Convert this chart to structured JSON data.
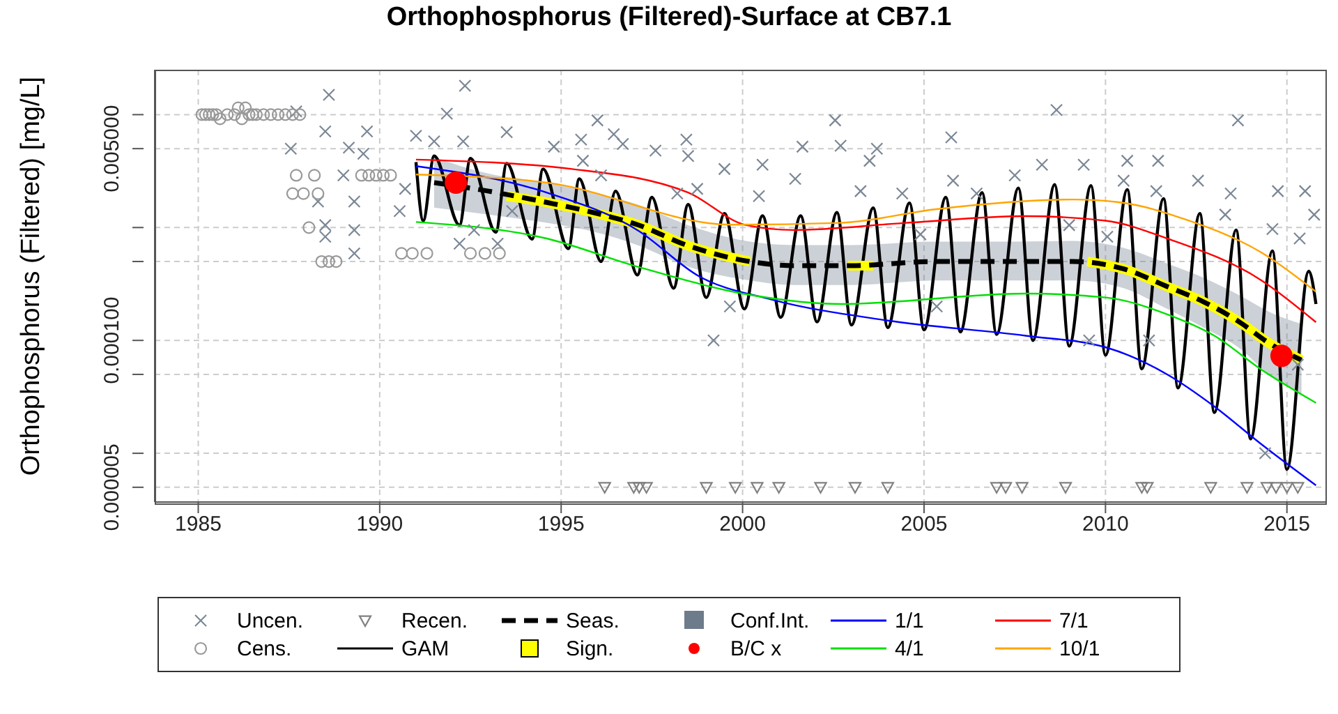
{
  "chart_data": {
    "type": "line",
    "title": "Orthophosphorus (Filtered)-Surface at CB7.1",
    "ylabel": "Orthophosphorus (Filtered) [mg/L]",
    "log": "y",
    "grid": true,
    "legend": "bottom",
    "xlim": [
      1983.8,
      2016.1
    ],
    "xticks": [
      1985,
      1990,
      1995,
      2000,
      2005,
      2010,
      2015
    ],
    "ylim": [
      3.7e-06,
      0.025
    ],
    "yticks": [
      {
        "value": 0.01,
        "label": null
      },
      {
        "value": 0.005,
        "label": "0.005000"
      },
      {
        "value": 0.001,
        "label": null
      },
      {
        "value": 0.0005,
        "label": null
      },
      {
        "value": 0.0001,
        "label": "0.000100"
      },
      {
        "value": 5e-05,
        "label": null
      },
      {
        "value": 1e-05,
        "label": null
      },
      {
        "value": 5e-06,
        "label": "0.000005"
      }
    ],
    "series": [
      {
        "name": "Uncen.",
        "type": "scatter",
        "marker": "cross",
        "color": "#7b8796",
        "x": [
          1987.55,
          1987.7,
          1988.3,
          1988.5,
          1988.5,
          1988.5,
          1988.6,
          1989.0,
          1989.15,
          1989.3,
          1989.3,
          1989.3,
          1989.55,
          1989.65,
          1990.55,
          1990.7,
          1991.0,
          1991.5,
          1991.85,
          1992.2,
          1992.3,
          1992.35,
          1992.6,
          1993.25,
          1993.5,
          1993.65,
          1994.8,
          1995.55,
          1995.6,
          1996.0,
          1996.1,
          1996.45,
          1996.7,
          1997.6,
          1998.2,
          1998.45,
          1998.5,
          1998.75,
          1999.2,
          1999.5,
          1999.65,
          2000.45,
          2000.55,
          2001.45,
          2001.65,
          2002.55,
          2002.7,
          2003.25,
          2003.5,
          2003.7,
          2004.4,
          2004.9,
          2005.35,
          2005.75,
          2005.8,
          2006.45,
          2007.5,
          2008.25,
          2008.65,
          2009.0,
          2009.4,
          2009.55,
          2010.05,
          2010.5,
          2010.6,
          2011.2,
          2011.4,
          2011.45,
          2012.55,
          2013.3,
          2013.45,
          2013.65,
          2014.4,
          2014.6,
          2014.75,
          2015.3,
          2015.35,
          2015.5,
          2015.75
        ],
        "values": [
          0.005,
          0.0107,
          0.0017,
          0.0071,
          0.00105,
          0.00083,
          0.015,
          0.0029,
          0.0051,
          0.0017,
          0.00095,
          0.00059,
          0.0045,
          0.0071,
          0.0014,
          0.0022,
          0.0065,
          0.0058,
          0.0102,
          0.00072,
          0.0058,
          0.018,
          0.00095,
          0.00072,
          0.007,
          0.0014,
          0.0052,
          0.006,
          0.0039,
          0.0089,
          0.0029,
          0.0067,
          0.0055,
          0.0048,
          0.002,
          0.006,
          0.0043,
          0.0022,
          0.0001,
          0.0033,
          0.0002,
          0.0019,
          0.0036,
          0.0027,
          0.0052,
          0.0089,
          0.0053,
          0.0021,
          0.0039,
          0.005,
          0.002,
          0.00087,
          0.0002,
          0.0063,
          0.0026,
          0.002,
          0.0029,
          0.0036,
          0.011,
          0.00105,
          0.0036,
          0.0001,
          0.00083,
          0.0026,
          0.0039,
          0.0001,
          0.0021,
          0.0039,
          0.0026,
          0.0013,
          0.002,
          0.0089,
          1e-05,
          0.00097,
          0.0021,
          6.1e-05,
          0.0008,
          0.0021,
          0.0013
        ]
      },
      {
        "name": "Cens.",
        "type": "scatter",
        "marker": "circle",
        "color": "#999999",
        "x": [
          1985.1,
          1985.2,
          1985.3,
          1985.4,
          1985.5,
          1985.6,
          1985.8,
          1986.0,
          1986.1,
          1986.2,
          1986.3,
          1986.4,
          1986.5,
          1986.6,
          1986.8,
          1987.0,
          1987.2,
          1987.4,
          1987.6,
          1987.8,
          1987.7,
          1988.2,
          1987.6,
          1987.9,
          1988.3,
          1988.05,
          1988.4,
          1988.6,
          1988.8,
          1989.5,
          1989.7,
          1989.9,
          1990.1,
          1990.3,
          1990.6,
          1990.9,
          1991.3,
          1992.5,
          1992.9,
          1993.3
        ],
        "values": [
          0.01,
          0.01,
          0.01,
          0.01,
          0.01,
          0.0092,
          0.01,
          0.01,
          0.0115,
          0.0092,
          0.0115,
          0.01,
          0.01,
          0.01,
          0.01,
          0.01,
          0.01,
          0.01,
          0.01,
          0.01,
          0.0029,
          0.0029,
          0.002,
          0.002,
          0.002,
          0.001,
          0.0005,
          0.0005,
          0.0005,
          0.0029,
          0.0029,
          0.0029,
          0.0029,
          0.0029,
          0.00059,
          0.00059,
          0.00059,
          0.00059,
          0.00059,
          0.00059
        ]
      },
      {
        "name": "Recen.",
        "type": "scatter",
        "marker": "triangle",
        "color": "#808080",
        "x": [
          1996.2,
          1997.0,
          1997.15,
          1997.35,
          1999.0,
          1999.8,
          2000.4,
          2001.0,
          2002.15,
          2003.1,
          2004.0,
          2007.0,
          2007.25,
          2007.7,
          2008.9,
          2011.0,
          2011.15,
          2012.9,
          2013.9,
          2014.45,
          2014.7,
          2015.0,
          2015.3
        ],
        "values": [
          5e-06,
          5e-06,
          5e-06,
          5e-06,
          5e-06,
          5e-06,
          5e-06,
          5e-06,
          5e-06,
          5e-06,
          5e-06,
          5e-06,
          5e-06,
          5e-06,
          5e-06,
          5e-06,
          5e-06,
          5e-06,
          5e-06,
          5e-06,
          5e-06,
          5e-06,
          5e-06
        ]
      },
      {
        "name": "GAM",
        "color": "#000000",
        "x": [
          1991.0,
          1991.2,
          1991.5,
          1992.2,
          1992.5,
          1993.2,
          1993.5,
          1994.2,
          1994.5,
          1995.2,
          1995.5,
          1996.1,
          1996.5,
          1997.1,
          1997.5,
          1998.1,
          1998.5,
          1999.0,
          1999.5,
          2000.05,
          2000.55,
          2001.05,
          2001.6,
          2002.05,
          2002.6,
          2003.0,
          2003.6,
          2004.0,
          2004.6,
          2005.0,
          2005.6,
          2006.0,
          2006.6,
          2007.0,
          2007.6,
          2008.0,
          2008.6,
          2009.0,
          2009.6,
          2010.0,
          2010.6,
          2011.0,
          2011.6,
          2012.0,
          2012.6,
          2013.0,
          2013.6,
          2014.0,
          2014.6,
          2015.0,
          2015.6,
          2015.8
        ],
        "values": [
          0.0038,
          0.00115,
          0.0043,
          0.00105,
          0.0041,
          0.00091,
          0.0037,
          0.00079,
          0.0033,
          0.00065,
          0.0027,
          0.0005,
          0.0021,
          0.00038,
          0.00185,
          0.00029,
          0.0016,
          0.00024,
          0.00133,
          0.00019,
          0.00127,
          0.00016,
          0.00127,
          0.000146,
          0.00136,
          0.000137,
          0.00149,
          0.00013,
          0.00165,
          0.000124,
          0.00185,
          0.000119,
          0.00204,
          0.000113,
          0.00224,
          0.0001,
          0.0024,
          8.9e-05,
          0.00235,
          7.4e-05,
          0.00217,
          5.6e-05,
          0.0018,
          3.8e-05,
          0.00133,
          2.3e-05,
          0.00095,
          1.34e-05,
          0.00062,
          7.2e-06,
          0.00041,
          0.00021
        ]
      },
      {
        "name": "Seas.",
        "line_style": "dashed",
        "color": "#000000",
        "x": [
          1991.5,
          1993.0,
          1994.6,
          1996.0,
          1997.1,
          1998.5,
          2000.2,
          2001.4,
          2003.0,
          2005.3,
          2007.0,
          2009.1,
          2010.5,
          2011.7,
          2012.7,
          2013.7,
          2014.5,
          2015.4
        ],
        "values": [
          0.0025,
          0.0021,
          0.00167,
          0.00133,
          0.00106,
          0.00069,
          0.0005,
          0.00046,
          0.00046,
          0.0005,
          0.0005,
          0.0005,
          0.00043,
          0.0003,
          0.00022,
          0.000145,
          9.5e-05,
          6.7e-05
        ],
        "lower": [
          0.0015,
          0.0013,
          0.0011,
          0.0009,
          0.0007,
          0.00045,
          0.00034,
          0.00031,
          0.00031,
          0.00034,
          0.00034,
          0.00034,
          0.00029,
          0.00019,
          0.00013,
          8.5e-05,
          5e-05,
          3.3e-05
        ],
        "upper": [
          0.0042,
          0.003,
          0.0025,
          0.002,
          0.0016,
          0.00105,
          0.00075,
          0.0007,
          0.0007,
          0.00075,
          0.00075,
          0.00076,
          0.00066,
          0.00048,
          0.00036,
          0.00025,
          0.00018,
          0.00014
        ]
      },
      {
        "name": "Sign.",
        "color": "#ffff00",
        "x": [
          1993.5,
          1994.6,
          1996.0,
          1997.1,
          1998.5,
          2000.2,
          2001.0,
          2002.9,
          2003.6,
          2005.0,
          2009.5,
          2010.5,
          2011.7,
          2012.7,
          2013.7,
          2014.5,
          2015.4
        ],
        "values": [
          0.0019,
          0.00167,
          0.00133,
          0.00106,
          0.00069,
          0.0005,
          null,
          0.00046,
          0.00046,
          null,
          0.0005,
          0.00043,
          0.0003,
          0.00022,
          0.000145,
          9.5e-05,
          6.7e-05
        ]
      },
      {
        "name": "Conf.Int.",
        "type": "area",
        "color": "#6e7b8b"
      },
      {
        "name": "B/C x",
        "type": "scatter",
        "marker": "circle",
        "color": "#ff0000",
        "x": [
          1992.1,
          2014.85
        ],
        "values": [
          0.0025,
          7.3e-05
        ]
      },
      {
        "name": "1/1",
        "color": "#0000ff",
        "x": [
          1991.0,
          1994.6,
          1997.1,
          1998.8,
          2000.8,
          2004.0,
          2007.8,
          2010.0,
          2011.7,
          2013.0,
          2014.3,
          2015.8
        ],
        "values": [
          0.0035,
          0.00204,
          0.00095,
          0.00037,
          0.00023,
          0.00015,
          0.00011,
          8.7e-05,
          5e-05,
          2.6e-05,
          1.2e-05,
          5.2e-06
        ]
      },
      {
        "name": "4/1",
        "color": "#00e000",
        "x": [
          1991.0,
          1994.6,
          1997.1,
          2000.3,
          2002.7,
          2007.8,
          2010.0,
          2011.7,
          2013.0,
          2014.3,
          2015.8
        ],
        "values": [
          0.00112,
          0.0008,
          0.00045,
          0.00025,
          0.00021,
          0.00026,
          0.00024,
          0.00017,
          0.00011,
          5.5e-05,
          2.8e-05
        ]
      },
      {
        "name": "7/1",
        "color": "#ff0000",
        "x": [
          1991.0,
          1995.3,
          1998.5,
          2000.1,
          2001.4,
          2004.5,
          2007.8,
          2010.0,
          2011.7,
          2014.3,
          2015.8
        ],
        "values": [
          0.004,
          0.0033,
          0.00204,
          0.00105,
          0.00095,
          0.0011,
          0.00126,
          0.00115,
          0.0008,
          0.00034,
          0.000145
        ]
      },
      {
        "name": "10/1",
        "color": "#ffa500",
        "x": [
          1991.0,
          1994.6,
          1999.7,
          2002.7,
          2005.3,
          2009.1,
          2010.4,
          2012.3,
          2014.3,
          2015.8
        ],
        "values": [
          0.00295,
          0.0025,
          0.00106,
          0.0011,
          0.00145,
          0.00177,
          0.00167,
          0.00115,
          0.0006,
          0.00027
        ]
      }
    ]
  }
}
